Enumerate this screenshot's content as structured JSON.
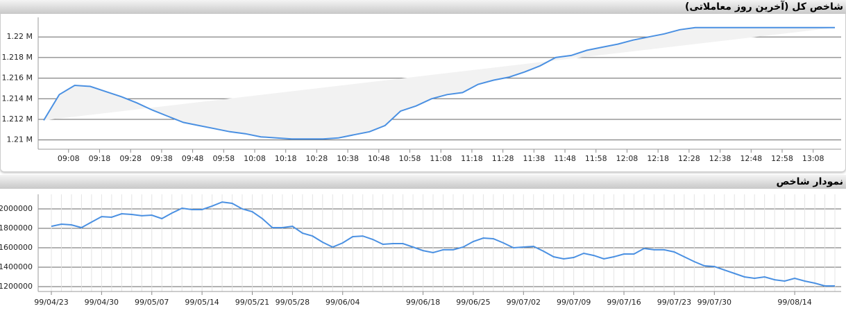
{
  "chart_data": [
    {
      "type": "line",
      "title": "شاخص کل (آخرین روز معاملاتی)",
      "x": [
        540,
        545,
        550,
        555,
        560,
        565,
        570,
        575,
        580,
        585,
        590,
        595,
        600,
        605,
        610,
        615,
        620,
        625,
        630,
        635,
        640,
        645,
        650,
        655,
        660,
        665,
        670,
        675,
        680,
        685,
        690,
        695,
        700,
        705,
        710,
        715,
        720,
        725,
        730,
        735,
        740,
        745,
        750,
        755,
        760,
        765,
        770,
        775,
        780,
        785,
        790,
        795
      ],
      "values": [
        1.2119,
        1.2144,
        1.2153,
        1.2152,
        1.2147,
        1.2142,
        1.2136,
        1.2129,
        1.2123,
        1.2117,
        1.2114,
        1.2111,
        1.2108,
        1.2106,
        1.2103,
        1.2102,
        1.2101,
        1.2101,
        1.2101,
        1.2102,
        1.2105,
        1.2108,
        1.2114,
        1.2128,
        1.2133,
        1.214,
        1.2144,
        1.2146,
        1.2154,
        1.2158,
        1.2161,
        1.2166,
        1.2172,
        1.218,
        1.2182,
        1.2187,
        1.219,
        1.2193,
        1.2197,
        1.22,
        1.2203,
        1.2207,
        1.2209,
        1.2209,
        1.2209,
        1.2209,
        1.2209,
        1.2209,
        1.2209,
        1.2209,
        1.2209,
        1.2209
      ],
      "color": "#4a90e2",
      "area_color": "#f2f2f2",
      "xlim": [
        540,
        795
      ],
      "xticks": [
        {
          "value": 548,
          "label": "09:08"
        },
        {
          "value": 558,
          "label": "09:18"
        },
        {
          "value": 568,
          "label": "09:28"
        },
        {
          "value": 578,
          "label": "09:38"
        },
        {
          "value": 588,
          "label": "09:48"
        },
        {
          "value": 598,
          "label": "09:58"
        },
        {
          "value": 608,
          "label": "10:08"
        },
        {
          "value": 618,
          "label": "10:18"
        },
        {
          "value": 628,
          "label": "10:28"
        },
        {
          "value": 638,
          "label": "10:38"
        },
        {
          "value": 648,
          "label": "10:48"
        },
        {
          "value": 658,
          "label": "10:58"
        },
        {
          "value": 668,
          "label": "11:08"
        },
        {
          "value": 678,
          "label": "11:18"
        },
        {
          "value": 688,
          "label": "11:28"
        },
        {
          "value": 698,
          "label": "11:38"
        },
        {
          "value": 708,
          "label": "11:48"
        },
        {
          "value": 718,
          "label": "11:58"
        },
        {
          "value": 728,
          "label": "12:08"
        },
        {
          "value": 738,
          "label": "12:18"
        },
        {
          "value": 748,
          "label": "12:28"
        },
        {
          "value": 758,
          "label": "12:38"
        },
        {
          "value": 768,
          "label": "12:48"
        },
        {
          "value": 778,
          "label": "12:58"
        },
        {
          "value": 788,
          "label": "13:08"
        }
      ],
      "ylim": [
        1.2091,
        1.2219
      ],
      "yticks": [
        {
          "value": 1.21,
          "label": "1.21 M"
        },
        {
          "value": 1.212,
          "label": "1.212 M"
        },
        {
          "value": 1.214,
          "label": "1.214 M"
        },
        {
          "value": 1.216,
          "label": "1.216 M"
        },
        {
          "value": 1.218,
          "label": "1.218 M"
        },
        {
          "value": 1.22,
          "label": "1.22 M"
        }
      ],
      "grid": true
    },
    {
      "type": "line",
      "title": "نمودار شاخص",
      "categories": [
        "99/04/23",
        null,
        null,
        null,
        null,
        "99/04/30",
        null,
        null,
        null,
        null,
        "99/05/07",
        null,
        null,
        null,
        null,
        "99/05/14",
        null,
        null,
        null,
        null,
        "99/05/21",
        null,
        null,
        null,
        "99/05/28",
        null,
        null,
        null,
        null,
        "99/06/04",
        null,
        null,
        null,
        null,
        null,
        null,
        null,
        "99/06/18",
        null,
        null,
        null,
        null,
        "99/06/25",
        null,
        null,
        null,
        null,
        "99/07/02",
        null,
        null,
        null,
        null,
        "99/07/09",
        null,
        null,
        null,
        null,
        "99/07/16",
        null,
        null,
        null,
        null,
        "99/07/23",
        null,
        null,
        null,
        "99/07/30",
        null,
        null,
        null,
        null,
        null,
        null,
        null,
        "99/08/14",
        null,
        null,
        null,
        null
      ],
      "values": [
        1821000,
        1843000,
        1836000,
        1807000,
        1864000,
        1921000,
        1914000,
        1950000,
        1943000,
        1929000,
        1936000,
        1900000,
        1957000,
        2007000,
        1993000,
        1993000,
        2029000,
        2071000,
        2057000,
        2000000,
        1971000,
        1900000,
        1807000,
        1807000,
        1821000,
        1750000,
        1721000,
        1657000,
        1607000,
        1650000,
        1714000,
        1721000,
        1686000,
        1636000,
        1643000,
        1643000,
        1607000,
        1571000,
        1550000,
        1579000,
        1579000,
        1607000,
        1664000,
        1700000,
        1693000,
        1650000,
        1600000,
        1607000,
        1614000,
        1564000,
        1507000,
        1486000,
        1500000,
        1543000,
        1521000,
        1486000,
        1507000,
        1536000,
        1536000,
        1593000,
        1579000,
        1579000,
        1557000,
        1507000,
        1457000,
        1414000,
        1407000,
        1371000,
        1336000,
        1300000,
        1286000,
        1300000,
        1271000,
        1257000,
        1286000,
        1257000,
        1236000,
        1207000,
        1207000
      ],
      "color": "#4a90e2",
      "ylim": [
        1150000,
        2150000
      ],
      "yticks": [
        1200000,
        1400000,
        1600000,
        1800000,
        2000000
      ],
      "grid": true,
      "x_grid": true
    }
  ]
}
